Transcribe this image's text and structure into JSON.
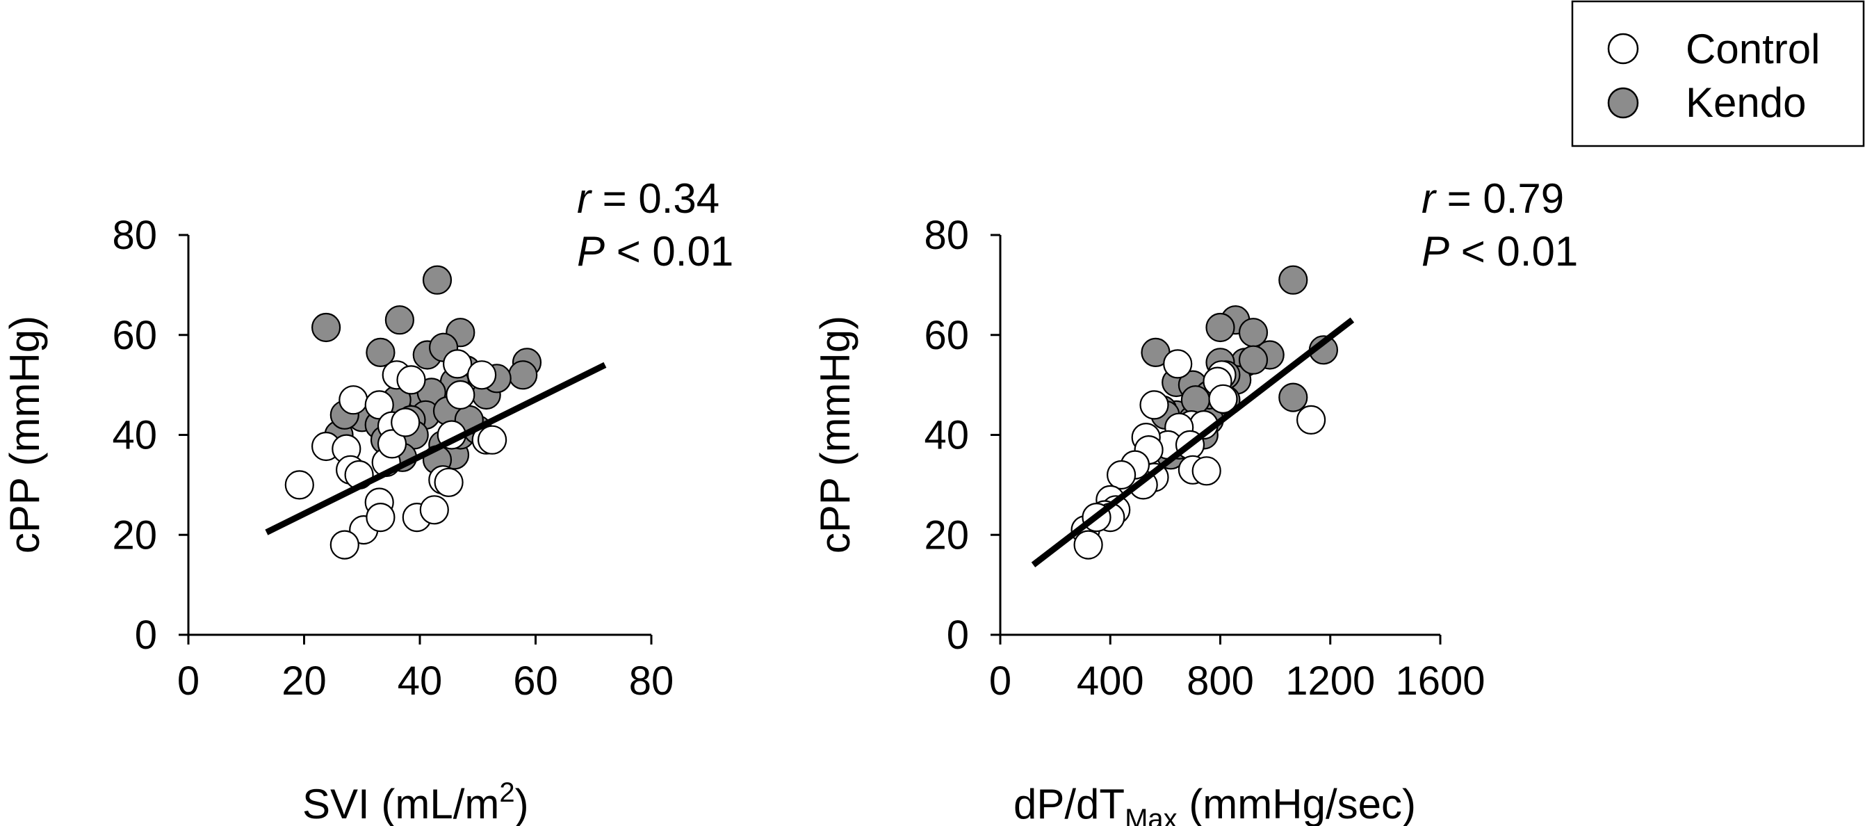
{
  "legend": {
    "entries": [
      {
        "label": "Control",
        "fill": "#ffffff"
      },
      {
        "label": "Kendo",
        "fill": "#8c8c8c"
      }
    ]
  },
  "colors": {
    "control": "#ffffff",
    "kendo": "#8c8c8c",
    "stroke": "#000000",
    "regression": "#000000"
  },
  "chart_data": [
    {
      "type": "scatter",
      "xlabel_main": "SVI (mL/m",
      "xlabel_sup": "2",
      "xlabel_tail": ")",
      "ylabel": "cPP (mmHg)",
      "xlim": [
        0,
        80
      ],
      "ylim": [
        0,
        80
      ],
      "xticks": [
        "0",
        "20",
        "40",
        "60",
        "80"
      ],
      "yticks": [
        "0",
        "20",
        "40",
        "60",
        "80"
      ],
      "stat_r_symbol": "r",
      "stat_r_value": " = 0.34",
      "stat_p_symbol": "P",
      "stat_p_value": " < 0.01",
      "regression": [
        [
          13.5,
          20.5
        ],
        [
          72,
          54
        ]
      ],
      "series": [
        {
          "name": "Kendo",
          "points": [
            [
              23.8,
              61.5
            ],
            [
              43,
              71
            ],
            [
              36.5,
              63
            ],
            [
              47,
              60.5
            ],
            [
              33.2,
              56.5
            ],
            [
              41.3,
              56
            ],
            [
              44.1,
              57.5
            ],
            [
              58.5,
              54.5
            ],
            [
              57.8,
              52
            ],
            [
              48,
              53
            ],
            [
              51.5,
              48
            ],
            [
              53.3,
              51.3
            ],
            [
              46,
              50.6
            ],
            [
              40,
              48
            ],
            [
              42,
              48.5
            ],
            [
              36,
              47
            ],
            [
              41,
              44
            ],
            [
              44.8,
              44.8
            ],
            [
              30,
              43.5
            ],
            [
              33,
              42
            ],
            [
              38.5,
              43
            ],
            [
              34,
              39
            ],
            [
              36,
              37
            ],
            [
              39,
              40
            ],
            [
              44,
              38
            ],
            [
              46,
              36
            ],
            [
              47,
              40
            ],
            [
              50,
              41
            ],
            [
              26,
              40
            ],
            [
              27,
              44
            ],
            [
              43,
              35
            ],
            [
              37,
              35.5
            ],
            [
              48.5,
              43
            ]
          ]
        },
        {
          "name": "Control",
          "points": [
            [
              19.2,
              30
            ],
            [
              23.8,
              37.7
            ],
            [
              27.3,
              37.2
            ],
            [
              28,
              33
            ],
            [
              28.5,
              47
            ],
            [
              29.5,
              32
            ],
            [
              30.3,
              21
            ],
            [
              27,
              18
            ],
            [
              33,
              46
            ],
            [
              33,
              26.5
            ],
            [
              33.2,
              23.5
            ],
            [
              34.2,
              34.5
            ],
            [
              35.2,
              41.8
            ],
            [
              35.2,
              38.2
            ],
            [
              36,
              52
            ],
            [
              37.5,
              42.5
            ],
            [
              38.5,
              51
            ],
            [
              39.5,
              23.5
            ],
            [
              42.5,
              25
            ],
            [
              44,
              31
            ],
            [
              45,
              30.5
            ],
            [
              45.5,
              40
            ],
            [
              46.5,
              54.2
            ],
            [
              47,
              48
            ],
            [
              50.7,
              52
            ],
            [
              51.5,
              39
            ],
            [
              52.5,
              39
            ]
          ]
        }
      ]
    },
    {
      "type": "scatter",
      "xlabel_main": "dP/dT",
      "xlabel_sub": "Max",
      "xlabel_tail": " (mmHg/sec)",
      "ylabel": "cPP (mmHg)",
      "xlim": [
        0,
        1600
      ],
      "ylim": [
        0,
        80
      ],
      "xticks": [
        "0",
        "400",
        "800",
        "1200",
        "1600"
      ],
      "yticks": [
        "0",
        "20",
        "40",
        "60",
        "80"
      ],
      "stat_r_symbol": "r",
      "stat_r_value": " = 0.79",
      "stat_p_symbol": "P",
      "stat_p_value": " < 0.01",
      "regression": [
        [
          120,
          14
        ],
        [
          1280,
          63
        ]
      ],
      "series": [
        {
          "name": "Kendo",
          "points": [
            [
              1065,
              71
            ],
            [
              855,
              63
            ],
            [
              800,
              61.5
            ],
            [
              920,
              60.5
            ],
            [
              565,
              56.5
            ],
            [
              980,
              56
            ],
            [
              1175,
              57
            ],
            [
              890,
              54.5
            ],
            [
              800,
              54.5
            ],
            [
              860,
              51
            ],
            [
              640,
              50.5
            ],
            [
              700,
              50
            ],
            [
              750,
              46
            ],
            [
              1065,
              47.5
            ],
            [
              640,
              44
            ],
            [
              700,
              43
            ],
            [
              760,
              43
            ],
            [
              820,
              47
            ],
            [
              590,
              45
            ],
            [
              660,
              40
            ],
            [
              700,
              42
            ],
            [
              550,
              38
            ],
            [
              620,
              36
            ],
            [
              680,
              39
            ],
            [
              740,
              40
            ],
            [
              600,
              44
            ],
            [
              760,
              48
            ],
            [
              820,
              52
            ],
            [
              920,
              55
            ],
            [
              650,
              38
            ],
            [
              710,
              47
            ]
          ]
        },
        {
          "name": "Control",
          "points": [
            [
              645,
              54.2
            ],
            [
              805,
              52
            ],
            [
              790,
              50.7
            ],
            [
              560,
              46
            ],
            [
              810,
              47.2
            ],
            [
              1130,
              43
            ],
            [
              695,
              42
            ],
            [
              740,
              42
            ],
            [
              650,
              41.5
            ],
            [
              610,
              38
            ],
            [
              530,
              39.5
            ],
            [
              540,
              37
            ],
            [
              690,
              38
            ],
            [
              700,
              33
            ],
            [
              750,
              32.8
            ],
            [
              560,
              31.5
            ],
            [
              520,
              30
            ],
            [
              490,
              34
            ],
            [
              440,
              32
            ],
            [
              400,
              27
            ],
            [
              420,
              25
            ],
            [
              380,
              24
            ],
            [
              400,
              23.5
            ],
            [
              310,
              21
            ],
            [
              350,
              23.5
            ],
            [
              320,
              18
            ]
          ]
        }
      ]
    }
  ]
}
